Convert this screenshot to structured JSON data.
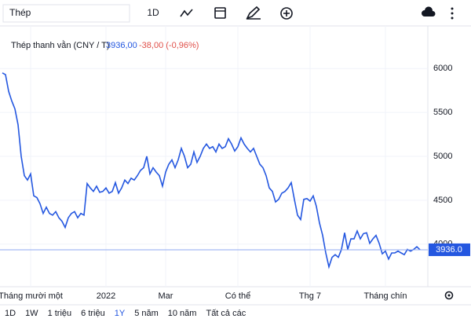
{
  "toolbar": {
    "search": "Thép",
    "interval": "1D"
  },
  "chart_data": {
    "type": "line",
    "legend": {
      "name": "Thép thanh vằn (CNY / T)",
      "value": "3936,00",
      "change": "-38,00 (-0,96%)"
    },
    "color": "#2457e0",
    "categories": [
      null,
      null,
      null,
      null,
      null,
      null,
      null,
      null,
      null,
      "Tháng mười một",
      null,
      null,
      null,
      null,
      null,
      null,
      null,
      null,
      null,
      null,
      null,
      null,
      null,
      null,
      null,
      null,
      null,
      null,
      null,
      null,
      null,
      null,
      null,
      "2022",
      null,
      null,
      null,
      null,
      null,
      null,
      null,
      null,
      null,
      null,
      null,
      null,
      null,
      null,
      null,
      null,
      null,
      null,
      "Mar",
      null,
      null,
      null,
      null,
      null,
      null,
      null,
      null,
      null,
      null,
      null,
      null,
      null,
      null,
      null,
      null,
      null,
      null,
      null,
      null,
      null,
      null,
      "Có thể",
      null,
      null,
      null,
      null,
      null,
      null,
      null,
      null,
      null,
      null,
      null,
      null,
      null,
      null,
      null,
      null,
      null,
      null,
      null,
      null,
      null,
      null,
      "Thg 7",
      null,
      null,
      null,
      null,
      null,
      null,
      null,
      null,
      null,
      null,
      null,
      null,
      null,
      null,
      null,
      null,
      null,
      null,
      null,
      null,
      null,
      null,
      null,
      "Tháng chín",
      null,
      null,
      null,
      null,
      null,
      null,
      null,
      null,
      null,
      null,
      null
    ],
    "values": [
      5950,
      5930,
      5740,
      5630,
      5540,
      5360,
      5000,
      4780,
      4730,
      4800,
      4550,
      4530,
      4460,
      4350,
      4420,
      4350,
      4330,
      4370,
      4300,
      4260,
      4190,
      4300,
      4350,
      4370,
      4300,
      4350,
      4330,
      4690,
      4640,
      4600,
      4660,
      4590,
      4600,
      4640,
      4580,
      4600,
      4700,
      4580,
      4640,
      4730,
      4690,
      4750,
      4730,
      4780,
      4840,
      4870,
      5000,
      4800,
      4870,
      4820,
      4780,
      4660,
      4820,
      4910,
      4960,
      4870,
      4960,
      5090,
      5000,
      4870,
      4910,
      5050,
      4930,
      5000,
      5090,
      5140,
      5090,
      5110,
      5050,
      5140,
      5090,
      5110,
      5200,
      5140,
      5060,
      5110,
      5210,
      5140,
      5090,
      5050,
      5090,
      5000,
      4910,
      4870,
      4780,
      4640,
      4600,
      4480,
      4510,
      4580,
      4600,
      4640,
      4700,
      4510,
      4330,
      4280,
      4510,
      4520,
      4490,
      4550,
      4430,
      4240,
      4100,
      3900,
      3740,
      3850,
      3880,
      3850,
      3940,
      4130,
      3940,
      4060,
      4060,
      4150,
      4060,
      4120,
      4130,
      4010,
      4060,
      4100,
      4010,
      3890,
      3920,
      3830,
      3900,
      3900,
      3920,
      3900,
      3880,
      3940,
      3920,
      3940,
      3970,
      3936
    ],
    "last_value_label": "3936.0",
    "ylim": [
      3515,
      6485
    ],
    "yticks": [
      4000,
      4500,
      5000,
      5500,
      6000
    ],
    "grid": true
  },
  "range_bar": {
    "items": [
      "1D",
      "1W",
      "1 triệu",
      "6 triệu",
      "1Y",
      "5 năm",
      "10 năm",
      "Tất cả các"
    ],
    "active": 4
  }
}
